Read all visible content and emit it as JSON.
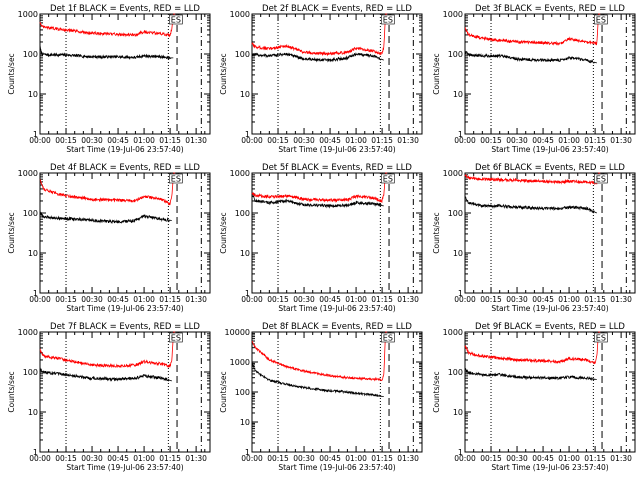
{
  "figure": {
    "x_tick_labels": [
      "00:00",
      "00:15",
      "00:30",
      "00:45",
      "01:00",
      "01:15",
      "01:30"
    ],
    "x_minutes": [
      0,
      15,
      30,
      45,
      60,
      75,
      90
    ],
    "y_tick_labels": [
      "1",
      "10",
      "100",
      "1000"
    ],
    "xlabel": "Start Time (19-Jul-06 23:57:40)",
    "ylabel": "Counts/sec",
    "colors": {
      "events": "#000000",
      "lld": "#ff0000",
      "background": "#ffffff"
    }
  },
  "chart_data": [
    {
      "type": "line",
      "title": "Det 1f BLACK = Events, RED = LLD",
      "xlim": [
        0,
        98
      ],
      "ylim": [
        1,
        1000
      ],
      "y_scale": "log",
      "marker_text": "ES",
      "dotted_x": [
        0,
        15,
        74
      ],
      "dashed_x": [
        79,
        93
      ],
      "series": [
        {
          "name": "Events",
          "x": [
            0,
            1,
            5,
            15,
            30,
            45,
            55,
            60,
            70,
            75,
            76,
            77
          ],
          "y": [
            150,
            100,
            95,
            95,
            85,
            85,
            82,
            90,
            85,
            80,
            80,
            80
          ]
        },
        {
          "name": "LLD",
          "x": [
            0,
            1,
            5,
            15,
            30,
            45,
            55,
            60,
            70,
            75,
            76,
            77,
            78
          ],
          "y": [
            650,
            480,
            450,
            400,
            330,
            310,
            300,
            360,
            320,
            290,
            420,
            1000,
            1000
          ]
        }
      ]
    },
    {
      "type": "line",
      "title": "Det 2f BLACK = Events, RED = LLD",
      "xlim": [
        0,
        98
      ],
      "ylim": [
        1,
        1000
      ],
      "y_scale": "log",
      "marker_text": "ES",
      "dotted_x": [
        0,
        15,
        74
      ],
      "dashed_x": [
        79,
        93
      ],
      "series": [
        {
          "name": "Events",
          "x": [
            0,
            2,
            10,
            20,
            30,
            45,
            55,
            60,
            70,
            76
          ],
          "y": [
            100,
            95,
            90,
            100,
            75,
            70,
            80,
            100,
            90,
            70
          ]
        },
        {
          "name": "LLD",
          "x": [
            0,
            2,
            10,
            20,
            30,
            45,
            55,
            60,
            70,
            75,
            76,
            77,
            78
          ],
          "y": [
            180,
            150,
            135,
            160,
            110,
            100,
            110,
            140,
            120,
            100,
            150,
            1000,
            1000
          ]
        }
      ]
    },
    {
      "type": "line",
      "title": "Det 3f BLACK = Events, RED = LLD",
      "xlim": [
        0,
        98
      ],
      "ylim": [
        1,
        1000
      ],
      "y_scale": "log",
      "marker_text": "ES",
      "dotted_x": [
        0,
        15,
        74
      ],
      "dashed_x": [
        79,
        93
      ],
      "series": [
        {
          "name": "Events",
          "x": [
            0,
            2,
            10,
            20,
            30,
            45,
            55,
            60,
            70,
            76
          ],
          "y": [
            120,
            95,
            90,
            90,
            75,
            70,
            70,
            80,
            70,
            60
          ]
        },
        {
          "name": "LLD",
          "x": [
            0,
            2,
            10,
            20,
            30,
            45,
            55,
            60,
            70,
            76,
            77,
            78
          ],
          "y": [
            450,
            300,
            250,
            220,
            200,
            190,
            180,
            240,
            200,
            180,
            1000,
            1000
          ]
        }
      ]
    },
    {
      "type": "line",
      "title": "Det 4f BLACK = Events, RED = LLD",
      "xlim": [
        0,
        98
      ],
      "ylim": [
        1,
        1000
      ],
      "y_scale": "log",
      "marker_text": "ES",
      "dotted_x": [
        0,
        15,
        74
      ],
      "dashed_x": [
        79,
        93
      ],
      "series": [
        {
          "name": "Events",
          "x": [
            0,
            2,
            10,
            20,
            30,
            45,
            55,
            60,
            70,
            76
          ],
          "y": [
            100,
            80,
            75,
            70,
            65,
            60,
            65,
            85,
            70,
            65
          ]
        },
        {
          "name": "LLD",
          "x": [
            0,
            2,
            10,
            20,
            30,
            45,
            55,
            60,
            70,
            75,
            76,
            77,
            78
          ],
          "y": [
            700,
            400,
            300,
            250,
            220,
            210,
            200,
            260,
            220,
            170,
            250,
            1000,
            1000
          ]
        }
      ]
    },
    {
      "type": "line",
      "title": "Det 5f BLACK = Events, RED = LLD",
      "xlim": [
        0,
        98
      ],
      "ylim": [
        1,
        1000
      ],
      "y_scale": "log",
      "marker_text": "ES",
      "dotted_x": [
        0,
        15,
        74
      ],
      "dashed_x": [
        79,
        93
      ],
      "series": [
        {
          "name": "Events",
          "x": [
            0,
            2,
            10,
            20,
            30,
            45,
            55,
            60,
            70,
            76
          ],
          "y": [
            300,
            200,
            180,
            200,
            160,
            150,
            155,
            180,
            170,
            150
          ]
        },
        {
          "name": "LLD",
          "x": [
            0,
            2,
            10,
            20,
            30,
            45,
            55,
            60,
            70,
            75,
            76,
            77,
            78
          ],
          "y": [
            320,
            280,
            250,
            270,
            220,
            210,
            215,
            260,
            240,
            200,
            300,
            1000,
            1000
          ]
        }
      ]
    },
    {
      "type": "line",
      "title": "Det 6f BLACK = Events, RED = LLD",
      "xlim": [
        0,
        98
      ],
      "ylim": [
        1,
        1000
      ],
      "y_scale": "log",
      "marker_text": "ES",
      "dotted_x": [
        0,
        15,
        74
      ],
      "dashed_x": [
        79,
        93
      ],
      "series": [
        {
          "name": "Events",
          "x": [
            0,
            2,
            10,
            20,
            30,
            45,
            55,
            60,
            70,
            76
          ],
          "y": [
            250,
            180,
            150,
            150,
            140,
            130,
            130,
            140,
            130,
            100
          ]
        },
        {
          "name": "LLD",
          "x": [
            0,
            2,
            10,
            20,
            30,
            45,
            55,
            60,
            70,
            76,
            77,
            78
          ],
          "y": [
            900,
            750,
            700,
            680,
            650,
            620,
            600,
            620,
            600,
            560,
            1000,
            1000
          ]
        }
      ]
    },
    {
      "type": "line",
      "title": "Det 7f BLACK = Events, RED = LLD",
      "xlim": [
        0,
        98
      ],
      "ylim": [
        1,
        1000
      ],
      "y_scale": "log",
      "marker_text": "ES",
      "dotted_x": [
        0,
        15,
        74
      ],
      "dashed_x": [
        79,
        93
      ],
      "series": [
        {
          "name": "Events",
          "x": [
            0,
            2,
            10,
            20,
            30,
            45,
            55,
            60,
            70,
            76
          ],
          "y": [
            120,
            100,
            90,
            80,
            70,
            65,
            70,
            80,
            70,
            60
          ]
        },
        {
          "name": "LLD",
          "x": [
            0,
            2,
            10,
            20,
            30,
            45,
            55,
            60,
            70,
            75,
            76,
            77,
            78
          ],
          "y": [
            350,
            250,
            220,
            180,
            150,
            140,
            150,
            180,
            160,
            140,
            200,
            1000,
            1000
          ]
        }
      ]
    },
    {
      "type": "line",
      "title": "Det 8f BLACK = Events, RED = LLD",
      "xlim": [
        0,
        98
      ],
      "ylim": [
        1,
        10000
      ],
      "y_scale": "log",
      "y_tick_labels": [
        "1",
        "10",
        "100",
        "1000",
        "10000"
      ],
      "marker_text": "ES",
      "dotted_x": [
        0,
        15,
        74
      ],
      "dashed_x": [
        79,
        93
      ],
      "series": [
        {
          "name": "Events",
          "x": [
            0,
            2,
            10,
            20,
            30,
            45,
            55,
            60,
            70,
            76
          ],
          "y": [
            1000,
            500,
            250,
            180,
            140,
            110,
            100,
            90,
            80,
            70
          ]
        },
        {
          "name": "LLD",
          "x": [
            0,
            2,
            10,
            20,
            30,
            45,
            55,
            60,
            70,
            75,
            76,
            77,
            78
          ],
          "y": [
            5000,
            3000,
            1200,
            700,
            500,
            350,
            300,
            280,
            270,
            260,
            400,
            10000,
            10000
          ]
        }
      ]
    },
    {
      "type": "line",
      "title": "Det 9f BLACK = Events, RED = LLD",
      "xlim": [
        0,
        98
      ],
      "ylim": [
        1,
        1000
      ],
      "y_scale": "log",
      "marker_text": "ES",
      "dotted_x": [
        0,
        15,
        74
      ],
      "dashed_x": [
        79,
        93
      ],
      "series": [
        {
          "name": "Events",
          "x": [
            0,
            2,
            10,
            20,
            30,
            45,
            55,
            60,
            70,
            76
          ],
          "y": [
            120,
            95,
            85,
            85,
            75,
            70,
            70,
            75,
            70,
            65
          ]
        },
        {
          "name": "LLD",
          "x": [
            0,
            2,
            10,
            20,
            30,
            45,
            55,
            60,
            70,
            75,
            76,
            77,
            78
          ],
          "y": [
            450,
            300,
            250,
            220,
            200,
            190,
            180,
            220,
            200,
            170,
            250,
            1000,
            1000
          ]
        }
      ]
    }
  ]
}
